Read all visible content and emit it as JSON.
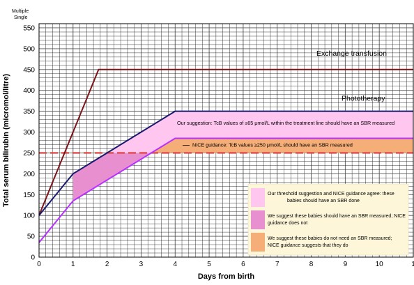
{
  "chart_data": {
    "type": "line",
    "corner_label": [
      "Multiple",
      "Single"
    ],
    "xlabel": "Days from birth",
    "ylabel": "Total serum bilirubin  (micromol/litre)",
    "xlim": [
      0,
      11
    ],
    "ylim": [
      0,
      560
    ],
    "x_ticks": [
      "0",
      "1",
      "2",
      "3",
      "4",
      "5",
      "6",
      "7",
      "8",
      "9",
      "10",
      "1"
    ],
    "y_ticks": [
      0,
      50,
      100,
      150,
      200,
      250,
      300,
      350,
      400,
      450,
      500,
      550
    ],
    "grid": true,
    "series": [
      {
        "name": "Exchange transfusion",
        "color": "#7b1418",
        "x": [
          0,
          1.75,
          11
        ],
        "y": [
          100,
          450,
          450
        ]
      },
      {
        "name": "Phototherapy",
        "color": "#1a1a6e",
        "x": [
          0,
          1,
          4,
          11
        ],
        "y": [
          100,
          200,
          350,
          350
        ]
      },
      {
        "name": "",
        "color": "#b833ff",
        "x": [
          0,
          1,
          4,
          11
        ],
        "y": [
          35,
          135,
          285,
          285
        ]
      }
    ],
    "reference_lines": [
      {
        "y": 250,
        "color": "#e04a4a",
        "style": "dashed"
      }
    ],
    "annotations": [
      {
        "text": "Our suggestion: TcB values of ≤65 μmol/L within the treatment line should have an SBR measured"
      },
      {
        "text": "NICE guidance: TcB values ≥250 μmol/L should have an SBR measured"
      }
    ],
    "legend": {
      "placement": "bottom-right",
      "items": [
        {
          "color": "#ffc6f0",
          "lines": [
            "Our threshold suggestion and NICE guidance agree: these",
            "babies should have an SBR done"
          ]
        },
        {
          "color": "#e890cf",
          "lines": [
            "We suggest these babies should have an SBR measured; NICE",
            "guidance does not"
          ]
        },
        {
          "color": "#f6ae78",
          "lines": [
            "We suggest these babies do not need an SBR measured;",
            "NICE guidance suggests that they do"
          ]
        }
      ]
    },
    "colors": {
      "pink_band": "#ffc6f0",
      "magenta_region": "#e890cf",
      "orange_band": "#f6ae78",
      "legend_background": "#fdf6d8"
    }
  }
}
